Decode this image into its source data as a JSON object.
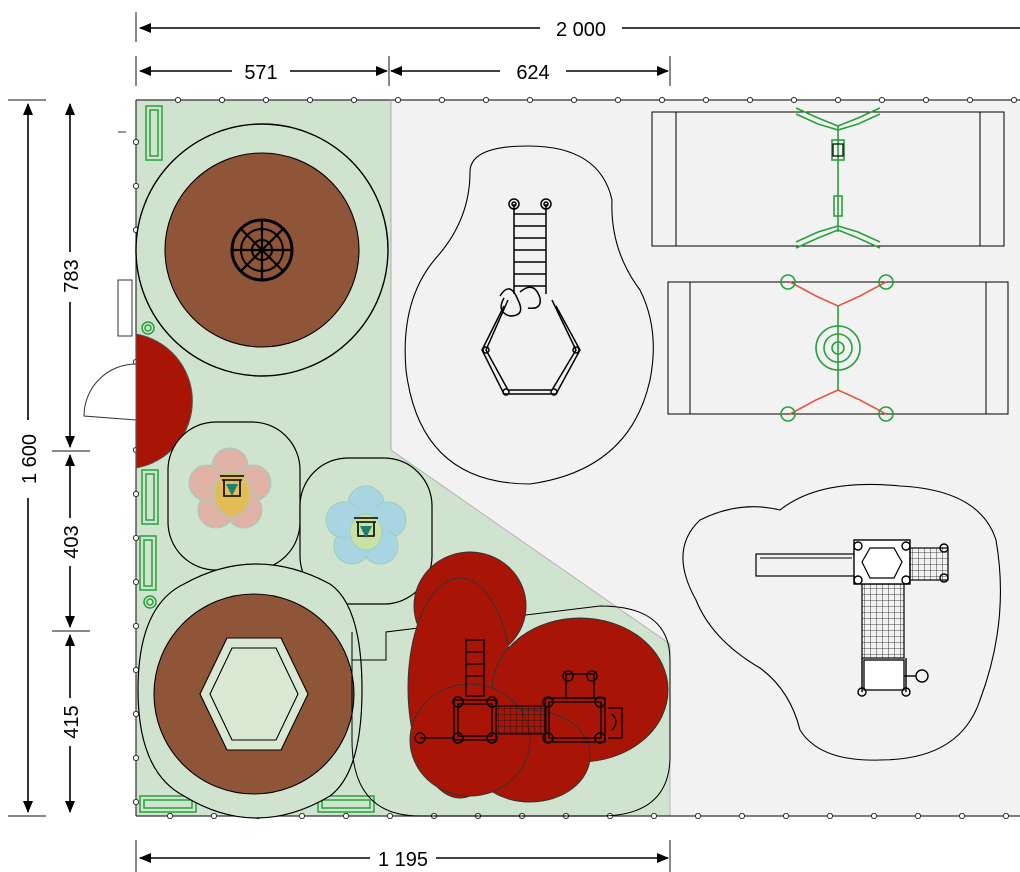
{
  "dimensions": {
    "total_width": "2 000",
    "segment_a": "571",
    "segment_b": "624",
    "segment_bottom": "1 195",
    "total_height": "1 600",
    "height_a": "783",
    "height_b": "403",
    "height_c": "415"
  },
  "colors": {
    "green_zone": "#cfe3cf",
    "grey_zone": "#f2f2f2",
    "safety_red": "#a81406",
    "sand_brown": "#8e5538",
    "equipment_green": "#27a23a",
    "equipment_red": "#e5584a",
    "flower_pink": "#e0b2a6",
    "flower_blue": "#a9d5e2"
  }
}
